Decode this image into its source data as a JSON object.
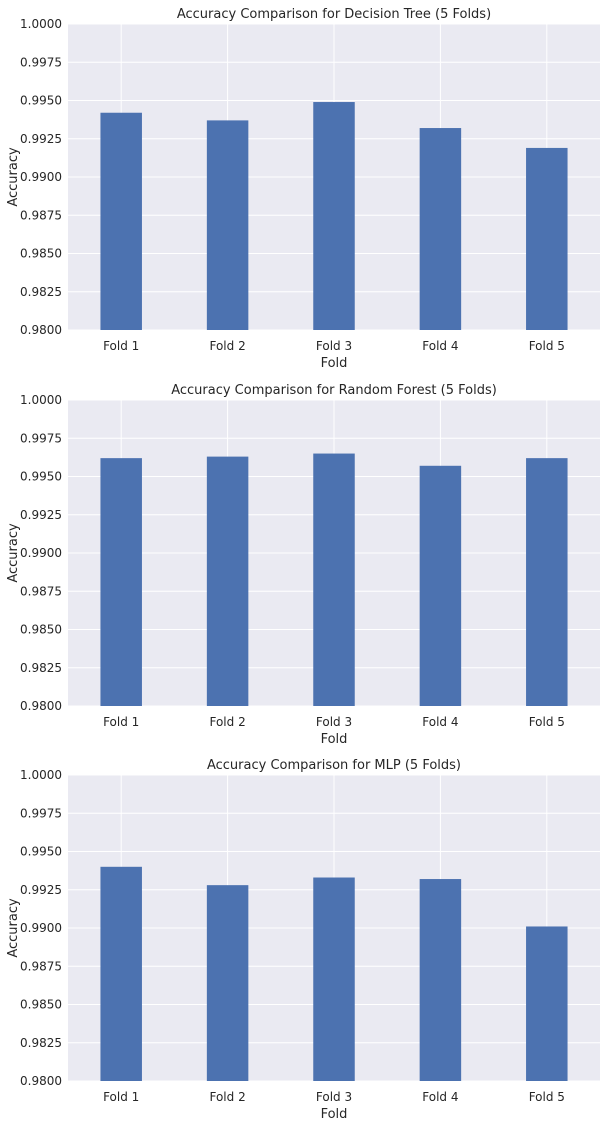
{
  "chart_data": [
    {
      "type": "bar",
      "title": "Accuracy Comparison for Decision Tree (5 Folds)",
      "xlabel": "Fold",
      "ylabel": "Accuracy",
      "categories": [
        "Fold 1",
        "Fold 2",
        "Fold 3",
        "Fold 4",
        "Fold 5"
      ],
      "values": [
        0.9942,
        0.9937,
        0.9949,
        0.9932,
        0.9919
      ],
      "ylim": [
        0.98,
        1.0
      ],
      "yticks": [
        "0.9800",
        "0.9825",
        "0.9850",
        "0.9875",
        "0.9900",
        "0.9925",
        "0.9950",
        "0.9975",
        "1.0000"
      ],
      "grid": true,
      "bar_color": "#4C72B0"
    },
    {
      "type": "bar",
      "title": "Accuracy Comparison for Random Forest (5 Folds)",
      "xlabel": "Fold",
      "ylabel": "Accuracy",
      "categories": [
        "Fold 1",
        "Fold 2",
        "Fold 3",
        "Fold 4",
        "Fold 5"
      ],
      "values": [
        0.9962,
        0.9963,
        0.9965,
        0.9957,
        0.9962
      ],
      "ylim": [
        0.98,
        1.0
      ],
      "yticks": [
        "0.9800",
        "0.9825",
        "0.9850",
        "0.9875",
        "0.9900",
        "0.9925",
        "0.9950",
        "0.9975",
        "1.0000"
      ],
      "grid": true,
      "bar_color": "#4C72B0"
    },
    {
      "type": "bar",
      "title": "Accuracy Comparison for MLP (5 Folds)",
      "xlabel": "Fold",
      "ylabel": "Accuracy",
      "categories": [
        "Fold 1",
        "Fold 2",
        "Fold 3",
        "Fold 4",
        "Fold 5"
      ],
      "values": [
        0.994,
        0.9928,
        0.9933,
        0.9932,
        0.9901
      ],
      "ylim": [
        0.98,
        1.0
      ],
      "yticks": [
        "0.9800",
        "0.9825",
        "0.9850",
        "0.9875",
        "0.9900",
        "0.9925",
        "0.9950",
        "0.9975",
        "1.0000"
      ],
      "grid": true,
      "bar_color": "#4C72B0"
    }
  ],
  "style": {
    "axes_background": "#EAEAF2",
    "grid_color": "#FFFFFF",
    "text_color": "#262626"
  }
}
